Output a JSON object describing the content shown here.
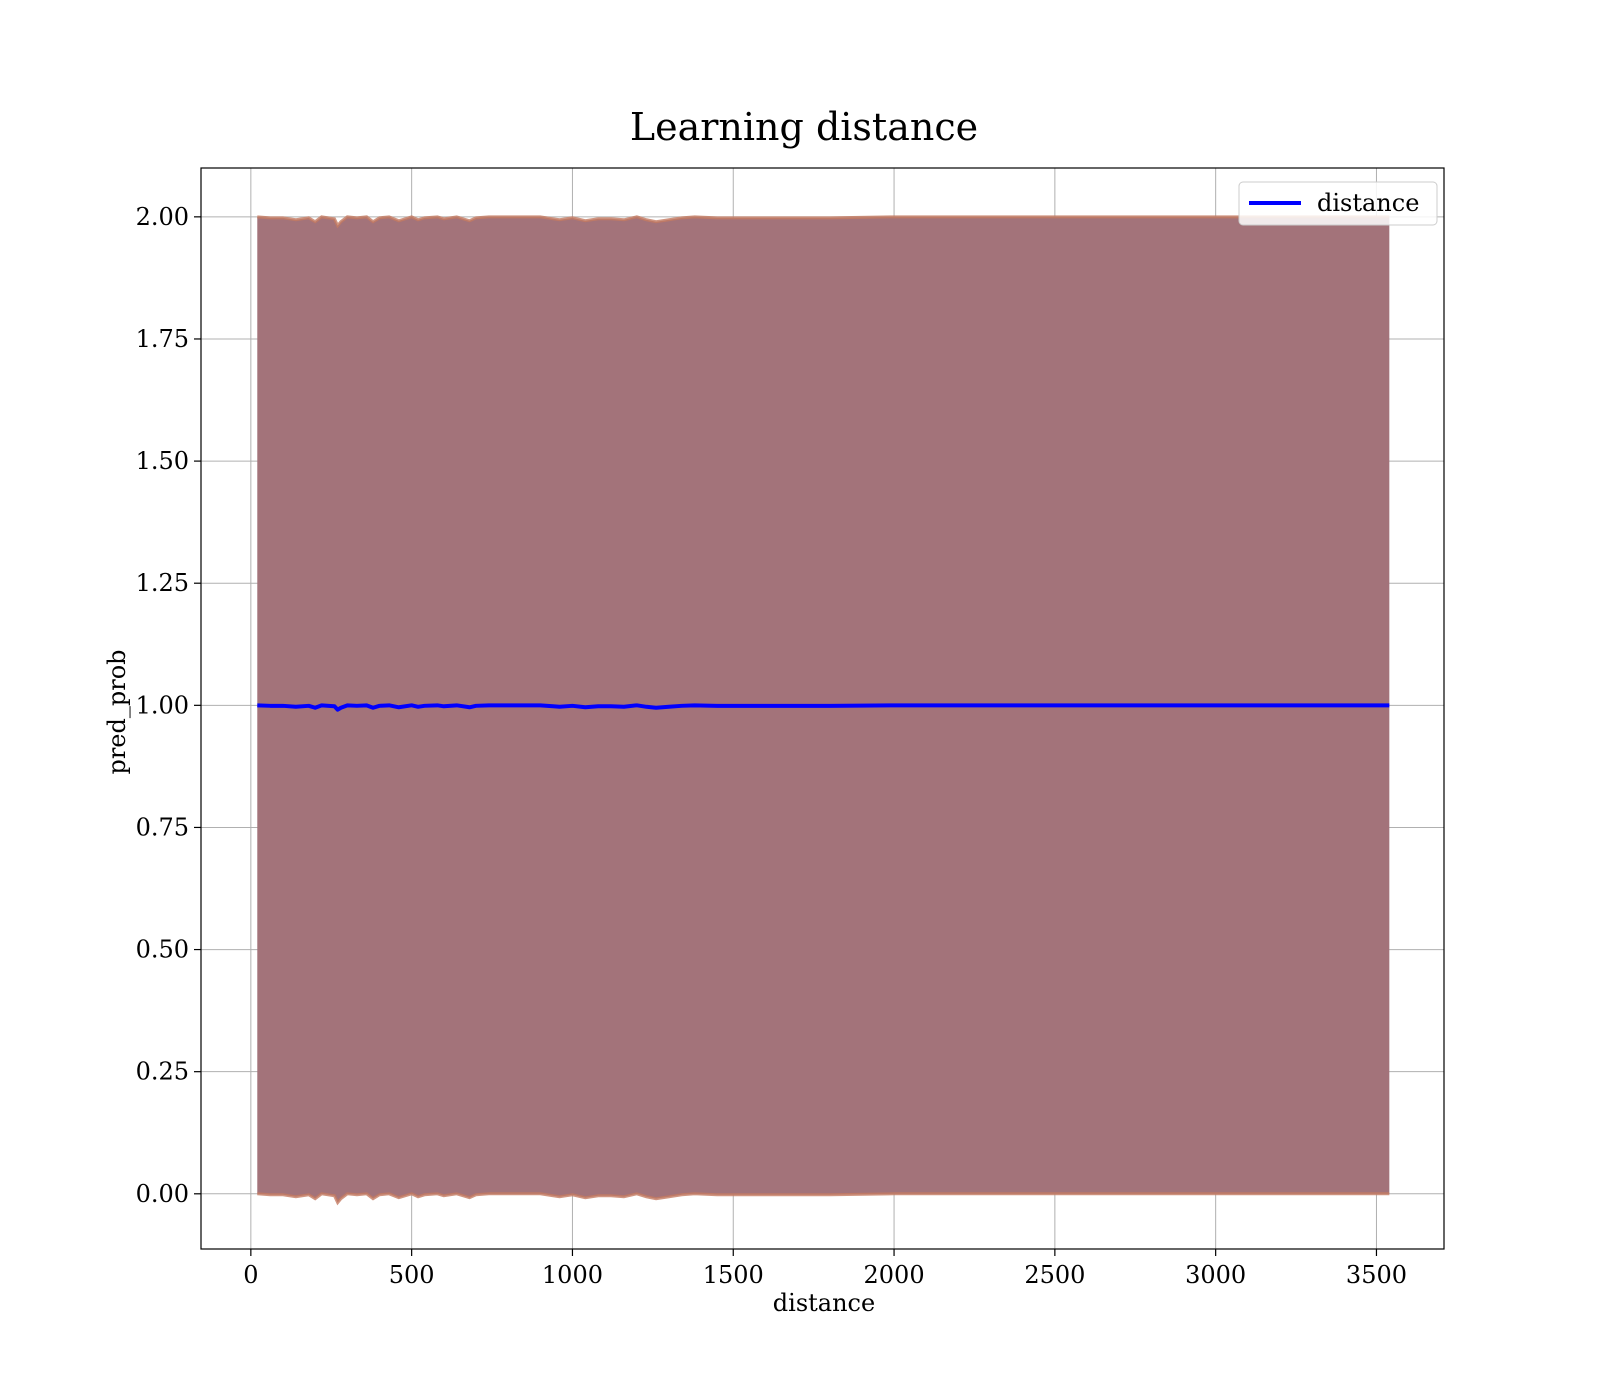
{
  "chart_data": {
    "type": "area",
    "title": "Learning distance",
    "xlabel": "distance",
    "ylabel": "pred_prob",
    "xlim": [
      -155,
      3710
    ],
    "ylim": [
      -0.113,
      2.1
    ],
    "xticks": [
      0,
      500,
      1000,
      1500,
      2000,
      2500,
      3000,
      3500
    ],
    "yticks": [
      0.0,
      0.25,
      0.5,
      0.75,
      1.0,
      1.25,
      1.5,
      1.75,
      2.0
    ],
    "ytick_labels": [
      "0.00",
      "0.25",
      "0.50",
      "0.75",
      "1.00",
      "1.25",
      "1.50",
      "1.75",
      "2.00"
    ],
    "xtick_labels": [
      "0",
      "500",
      "1000",
      "1500",
      "2000",
      "2500",
      "3000",
      "3500"
    ],
    "grid": true,
    "legend": {
      "placement": "top-right",
      "entries": [
        "distance"
      ]
    },
    "series": [
      {
        "name": "distance",
        "color": "#0000ff",
        "x": [
          20,
          60,
          100,
          140,
          180,
          200,
          220,
          260,
          270,
          280,
          300,
          330,
          360,
          380,
          400,
          430,
          460,
          500,
          520,
          540,
          580,
          600,
          640,
          680,
          700,
          740,
          800,
          850,
          900,
          940,
          960,
          1000,
          1040,
          1080,
          1120,
          1160,
          1200,
          1230,
          1260,
          1300,
          1340,
          1380,
          1450,
          1500,
          1600,
          1800,
          2000,
          2200,
          2500,
          2800,
          3000,
          3200,
          3400,
          3540
        ],
        "y": [
          1.0,
          0.999,
          0.999,
          0.997,
          0.999,
          0.995,
          1.0,
          0.998,
          0.991,
          0.995,
          1.0,
          0.999,
          1.0,
          0.995,
          0.999,
          1.0,
          0.996,
          1.0,
          0.997,
          0.999,
          1.0,
          0.998,
          1.0,
          0.996,
          0.999,
          1.0,
          1.0,
          1.0,
          1.0,
          0.998,
          0.997,
          0.999,
          0.996,
          0.998,
          0.998,
          0.997,
          1.0,
          0.997,
          0.995,
          0.997,
          0.999,
          1.0,
          0.999,
          0.999,
          0.999,
          0.999,
          1.0,
          1.0,
          1.0,
          1.0,
          1.0,
          1.0,
          1.0,
          1.0
        ]
      }
    ],
    "band": {
      "lower_color": "#c47a62",
      "upper_color": "#c47a62",
      "fill_color": "#a3737a",
      "lower": "1 - (1 - y)",
      "upper": "1 + (1 - y)"
    }
  }
}
